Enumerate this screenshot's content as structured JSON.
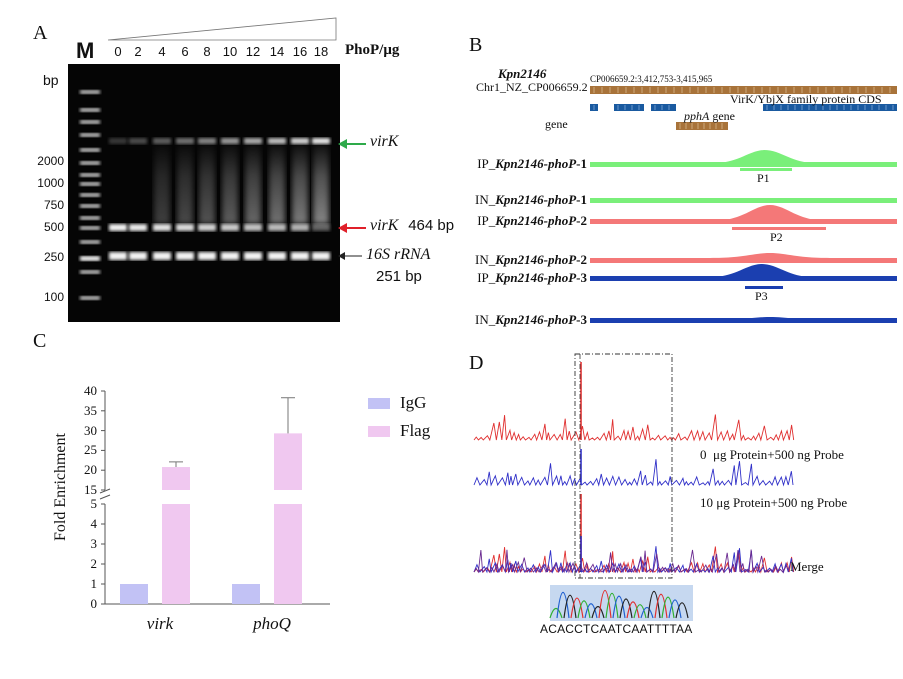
{
  "panelA": {
    "letter": "A",
    "marker_label": "M",
    "bp_label": "bp",
    "lanes": [
      "0",
      "2",
      "4",
      "6",
      "8",
      "10",
      "12",
      "14",
      "16",
      "18"
    ],
    "unit_label": "PhoP/μg",
    "markers": [
      "2000",
      "1000",
      "750",
      "500",
      "250",
      "100"
    ],
    "annot_virk": "virK",
    "annot_virk_shift": "virK",
    "annot_virk_bp": "464 bp",
    "annot_16s": "16S rRNA",
    "annot_16s_bp": "251 bp",
    "colors": {
      "green_arrow": "#2eaa4a",
      "red_arrow": "#e0202a",
      "black_arrow": "#222222"
    }
  },
  "panelB": {
    "letter": "B",
    "strain": "Kpn2146",
    "chrom": "Chr1_NZ_CP006659.2",
    "coords": "CP006659.2:3,412,753-3,415,965",
    "cds_label": "VirK/YbjX family protein CDS",
    "gene_label": "gene",
    "phpa_gene": "pphA",
    "phpa_suffix": " gene",
    "tracks": [
      {
        "prefix": "IP_",
        "name": "Kpn2146-phoP",
        "suffix": "-1",
        "color": "#7aef7a"
      },
      {
        "prefix": "IN_",
        "name": "Kpn2146-phoP",
        "suffix": "-1",
        "color": "#7aef7a"
      },
      {
        "prefix": "IP_",
        "name": "Kpn2146-phoP",
        "suffix": "-2",
        "color": "#f47878"
      },
      {
        "prefix": "IN_",
        "name": "Kpn2146-phoP",
        "suffix": "-2",
        "color": "#f47878"
      },
      {
        "prefix": "IP_",
        "name": "Kpn2146-phoP",
        "suffix": "-3",
        "color": "#1b3fb0"
      },
      {
        "prefix": "IN_",
        "name": "Kpn2146-phoP",
        "suffix": "-3",
        "color": "#1b3fb0"
      }
    ],
    "peaks": [
      "P1",
      "P2",
      "P3"
    ],
    "colors": {
      "gene_brown": "#a8733a",
      "cds_blue": "#1a5aa0"
    }
  },
  "panelC": {
    "letter": "C",
    "chart_data": {
      "type": "bar",
      "categories": [
        "virk",
        "phoQ"
      ],
      "series": [
        {
          "name": "IgG",
          "values": [
            1,
            1
          ],
          "color": "#c2c2f5"
        },
        {
          "name": "Flag",
          "values": [
            20.8,
            29.3
          ],
          "errors": [
            1.3,
            9.0
          ],
          "color": "#f0c8f0"
        }
      ],
      "ylabel": "Fold Enrichment",
      "axis_break": [
        5,
        15
      ],
      "yticks_low": [
        "0",
        "1",
        "2",
        "3",
        "4",
        "5"
      ],
      "yticks_high": [
        "15",
        "20",
        "25",
        "30",
        "35",
        "40"
      ],
      "ylim": [
        0,
        40
      ]
    }
  },
  "panelD": {
    "letter": "D",
    "label_0ug": "0  μg Protein+500 ng Probe",
    "label_10ug": "10 μg Protein+500 ng Probe",
    "label_merge": "Merge",
    "sequence": "ACACCTCAATCAATTTTAA",
    "colors": {
      "red": "#e03030",
      "blue": "#3030c8",
      "purple": "#6a2a90"
    }
  }
}
